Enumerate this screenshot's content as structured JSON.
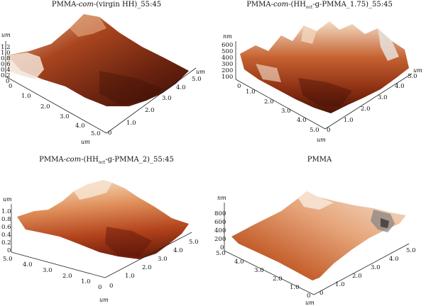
{
  "panels": [
    {
      "title_parts": [
        "PMMA-",
        "com",
        "-(virgin HH)_55:45",
        "",
        "",
        ""
      ],
      "z_unit": "um",
      "z_ticks": [
        "1.2",
        "1.0",
        "0.8",
        "0.6",
        "0.4",
        "0.2",
        "0"
      ],
      "left_axis_ticks": [
        "0",
        "1.0",
        "2.0",
        "3.0",
        "4.0",
        "5.0"
      ],
      "right_axis_ticks": [
        "0",
        "1.0",
        "2.0",
        "3.0",
        "4.0",
        "5.0"
      ],
      "left_axis_unit": "um",
      "right_axis_unit": "um"
    },
    {
      "title_parts": [
        "PMMA-",
        "com",
        "-(HH",
        "oct",
        "-g-PMMA_1.75)_55:45",
        ""
      ],
      "z_unit": "nm",
      "z_ticks": [
        "600",
        "500",
        "400",
        "300",
        "200",
        "100"
      ],
      "left_axis_ticks": [
        "0",
        "1.0",
        "2.0",
        "3.0",
        "4.0",
        "5.0"
      ],
      "right_axis_ticks": [
        "0",
        "1.0",
        "2.0",
        "3.0",
        "4.0",
        "5.0"
      ],
      "left_axis_unit": "um",
      "right_axis_unit": "um"
    },
    {
      "title_parts": [
        "PMMA-",
        "com",
        "-(HH",
        "oct",
        "-g-PMMA_2)_55:45",
        ""
      ],
      "z_unit": "um",
      "z_ticks": [
        "1.0",
        "0.8",
        "0.6",
        "0.4",
        "0.2",
        "0"
      ],
      "left_axis_ticks": [
        "5.0",
        "4.0",
        "3.0",
        "2.0",
        "1.0",
        "0"
      ],
      "right_axis_ticks": [
        "0",
        "1.0",
        "2.0",
        "3.0",
        "4.0",
        "5.0"
      ],
      "left_axis_unit": "",
      "right_axis_unit": "um"
    },
    {
      "title_parts": [
        "PMMA",
        "",
        "",
        "",
        "",
        ""
      ],
      "z_unit": "nm",
      "z_ticks": [
        "800",
        "600",
        "400",
        "200",
        "0"
      ],
      "left_axis_ticks": [
        "5.0",
        "4.0",
        "3.0",
        "2.0",
        "1.0",
        "0"
      ],
      "right_axis_ticks": [
        "0",
        "1.0",
        "2.0",
        "3.0",
        "4.0",
        "5.0"
      ],
      "left_axis_unit": "",
      "right_axis_unit": "um"
    }
  ],
  "colors": {
    "surface_dark": "#5a1a0c",
    "surface_mid": "#b5502a",
    "surface_light": "#f2d2b0"
  }
}
